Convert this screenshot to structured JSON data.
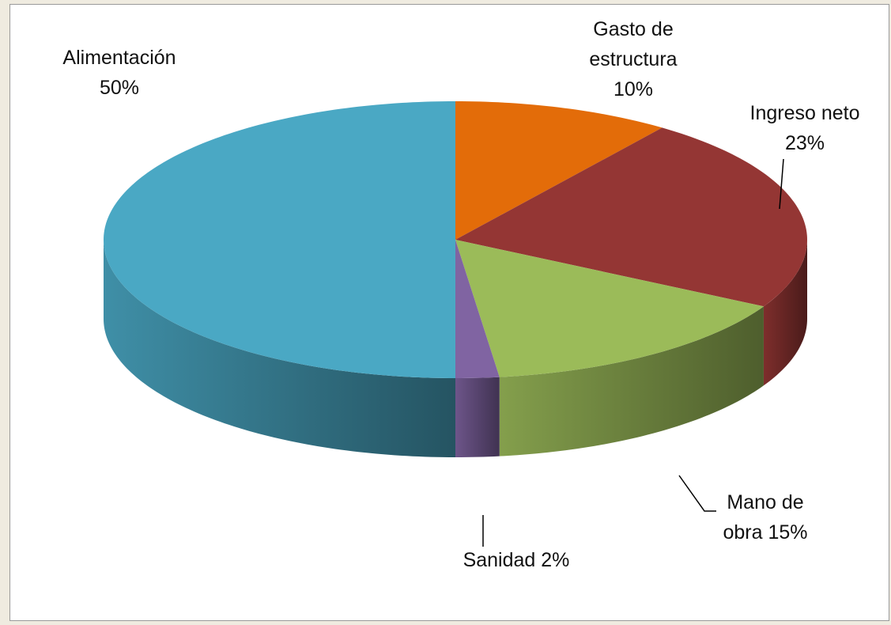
{
  "chart_data": {
    "type": "pie3d",
    "categories": [
      "Gasto de estructura",
      "Ingreso neto",
      "Mano de obra",
      "Sanidad",
      "Alimentación"
    ],
    "values": [
      10,
      23,
      15,
      2,
      50
    ],
    "value_labels": [
      "10%",
      "23%",
      "15%",
      "2%",
      "50%"
    ],
    "colors": [
      "#e36c09",
      "#943634",
      "#9bbb59",
      "#8064a2",
      "#4aa8c4"
    ]
  }
}
